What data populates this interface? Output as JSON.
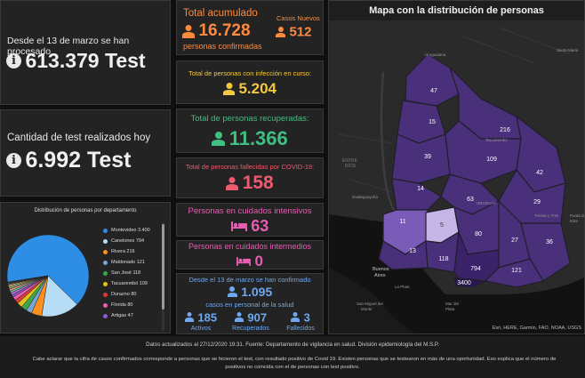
{
  "processed": {
    "label": "Desde el 13 de marzo se han procesado",
    "value": "613.379 Test"
  },
  "daily_tests": {
    "label": "Cantidad de test realizados hoy",
    "value": "6.992 Test"
  },
  "dept_chart": {
    "title": "Distribución de personas por departamento"
  },
  "totals": {
    "total_label": "Total acumulado",
    "total_value": "16.728",
    "total_sub": "personas confirmadas",
    "new_label": "Casos Nuevos",
    "new_value": "512"
  },
  "active": {
    "label": "Total de personas con infección en curso:",
    "value": "5.204"
  },
  "recovered": {
    "label": "Total de personas recuperadas:",
    "value": "11.366"
  },
  "deceased": {
    "label": "Total de personas fallecidas por COVID-19:",
    "value": "158"
  },
  "intensive": {
    "label": "Personas en cuidados intensivos",
    "value": "63"
  },
  "intermediate": {
    "label": "Personas en cuidados intermedios",
    "value": "0"
  },
  "health_staff": {
    "label_top": "Desde el 13 de marzo se han confirmado",
    "value": "1.095",
    "label_bottom": "casos en personal de la salud",
    "active_value": "185",
    "active_label": "Activos",
    "recovered_value": "907",
    "recovered_label": "Recuperados",
    "deceased_value": "3",
    "deceased_label": "Fallecidos"
  },
  "map": {
    "title": "Mapa con la distribución de personas",
    "attribution": "Esri, HERE, Garmin, FAO, NOAA, USGS",
    "place_labels": [
      "Uruguaiana",
      "Santa Maria",
      "Tacuarembó",
      "Treinta y Tres",
      "Gualeguaychú",
      "Buenos Aires",
      "La Plata",
      "San Miguel del Monte",
      "Mar del Plata"
    ],
    "partial_labels": [
      "URUGUAY",
      "Punta del Este"
    ],
    "dept_values": [
      "47",
      "15",
      "216",
      "39",
      "109",
      "42",
      "14",
      "63",
      "29",
      "11",
      "5",
      "80",
      "27",
      "36",
      "13",
      "118",
      "794",
      "121",
      "3400"
    ]
  },
  "footer": {
    "update_line": "Datos actualizados al 27/12/2020 19:31. Fuente: Departamento de vigilancia en salud. División epidemiología del M.S.P.",
    "note_line1": "Cabe aclarar que la cifra de casos confirmados corresponde a personas que se hicieron el test, con resultado positivo de Covid 19. Existen personas que se testearon en más de una oportunidad. Eso explica que el número de",
    "note_line2": "positivos no coincida con el de personas con test positivo."
  },
  "chart_data": {
    "type": "pie",
    "title": "Distribución de personas por departamento",
    "categories": [
      "Montevideo",
      "Canelones",
      "Rivera",
      "Maldonado",
      "San José",
      "Tacuarembó",
      "Durazno",
      "Florida",
      "Artigas"
    ],
    "values": [
      3400,
      794,
      216,
      121,
      118,
      109,
      80,
      80,
      47
    ],
    "labels": [
      "Montevideo 3.400",
      "Canelones 794",
      "Rivera 216",
      "Maldonado 121",
      "San José 118",
      "Tacuarembó 109",
      "Durazno 80",
      "Florida 80",
      "Artigas 47"
    ],
    "colors": [
      "#2e8ee6",
      "#b7dcf5",
      "#ff8f1f",
      "#7aa3d6",
      "#3ba84a",
      "#e3c31a",
      "#d63c3c",
      "#e65faa",
      "#8a5ad8"
    ],
    "extra_slice_colors": [
      "#c66ad6",
      "#66c2a5",
      "#f4a582",
      "#9e9e9e",
      "#c9e07a",
      "#ffd16b",
      "#a77ac4",
      "#6fc3d8",
      "#d98a5a",
      "#4c9a7a"
    ],
    "legend": "right"
  }
}
